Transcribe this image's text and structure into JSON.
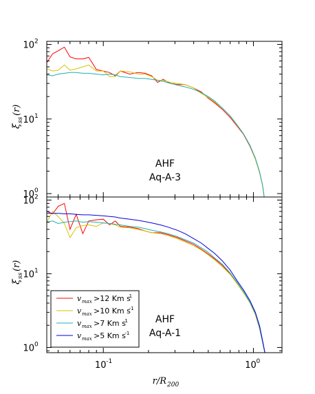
{
  "chart_data": [
    {
      "type": "line",
      "xscale": "log",
      "yscale": "log",
      "xlim": [
        0.042,
        1.55
      ],
      "ylim": [
        0.9,
        110
      ],
      "ylabel_main": "ξ",
      "ylabel_sub": "ss",
      "ylabel_tail": "(r)",
      "annotation": [
        "AHF",
        "Aq-A-3"
      ],
      "yticks": [
        {
          "value": 1,
          "label_base": "10",
          "label_exp": "0"
        },
        {
          "value": 10,
          "label_base": "10",
          "label_exp": "1"
        },
        {
          "value": 100,
          "label_base": "10",
          "label_exp": "2"
        }
      ],
      "series": [
        {
          "color": "#ff0000",
          "points": [
            [
              0.042,
              57
            ],
            [
              0.046,
              75
            ],
            [
              0.05,
              82
            ],
            [
              0.055,
              92
            ],
            [
              0.06,
              68
            ],
            [
              0.066,
              64
            ],
            [
              0.073,
              64
            ],
            [
              0.08,
              67
            ],
            [
              0.09,
              46
            ],
            [
              0.1,
              44
            ],
            [
              0.11,
              42
            ],
            [
              0.12,
              38
            ],
            [
              0.13,
              44
            ],
            [
              0.15,
              40
            ],
            [
              0.17,
              42
            ],
            [
              0.19,
              41
            ],
            [
              0.21,
              38
            ],
            [
              0.23,
              31
            ],
            [
              0.25,
              34
            ],
            [
              0.28,
              30
            ],
            [
              0.31,
              29
            ],
            [
              0.35,
              29
            ],
            [
              0.4,
              26
            ],
            [
              0.45,
              23
            ],
            [
              0.5,
              19
            ],
            [
              0.55,
              16.5
            ],
            [
              0.62,
              13.5
            ],
            [
              0.7,
              10.5
            ],
            [
              0.78,
              8
            ],
            [
              0.86,
              6.2
            ],
            [
              0.95,
              4.3
            ],
            [
              1.03,
              2.9
            ],
            [
              1.1,
              1.9
            ],
            [
              1.15,
              1.3
            ],
            [
              1.18,
              0.9
            ]
          ]
        },
        {
          "color": "#d6c200",
          "points": [
            [
              0.042,
              47
            ],
            [
              0.046,
              44
            ],
            [
              0.05,
              45
            ],
            [
              0.055,
              53
            ],
            [
              0.06,
              45
            ],
            [
              0.066,
              47
            ],
            [
              0.073,
              50
            ],
            [
              0.08,
              53
            ],
            [
              0.09,
              44
            ],
            [
              0.1,
              44
            ],
            [
              0.11,
              37
            ],
            [
              0.12,
              37
            ],
            [
              0.13,
              44
            ],
            [
              0.15,
              43
            ],
            [
              0.17,
              40
            ],
            [
              0.19,
              40
            ],
            [
              0.21,
              37
            ],
            [
              0.23,
              33
            ],
            [
              0.25,
              33
            ],
            [
              0.28,
              31
            ],
            [
              0.31,
              30
            ],
            [
              0.35,
              29
            ],
            [
              0.4,
              26
            ],
            [
              0.45,
              22
            ],
            [
              0.5,
              19.5
            ],
            [
              0.55,
              17
            ],
            [
              0.62,
              14
            ],
            [
              0.7,
              11
            ],
            [
              0.78,
              8.2
            ],
            [
              0.86,
              6.3
            ],
            [
              0.95,
              4.4
            ],
            [
              1.03,
              2.9
            ],
            [
              1.1,
              1.9
            ],
            [
              1.15,
              1.3
            ],
            [
              1.18,
              0.9
            ]
          ]
        },
        {
          "color": "#20b0b0",
          "points": [
            [
              0.042,
              39
            ],
            [
              0.046,
              38
            ],
            [
              0.05,
              40
            ],
            [
              0.055,
              41
            ],
            [
              0.06,
              42
            ],
            [
              0.066,
              42
            ],
            [
              0.073,
              41
            ],
            [
              0.08,
              41
            ],
            [
              0.09,
              40
            ],
            [
              0.1,
              39
            ],
            [
              0.11,
              40
            ],
            [
              0.12,
              39
            ],
            [
              0.13,
              37
            ],
            [
              0.15,
              36
            ],
            [
              0.17,
              35
            ],
            [
              0.19,
              35
            ],
            [
              0.21,
              34
            ],
            [
              0.23,
              33
            ],
            [
              0.25,
              32
            ],
            [
              0.28,
              30
            ],
            [
              0.31,
              28.5
            ],
            [
              0.35,
              27
            ],
            [
              0.4,
              25
            ],
            [
              0.45,
              22.5
            ],
            [
              0.5,
              20
            ],
            [
              0.55,
              17.5
            ],
            [
              0.62,
              14
            ],
            [
              0.7,
              11
            ],
            [
              0.78,
              8.3
            ],
            [
              0.86,
              6.3
            ],
            [
              0.95,
              4.4
            ],
            [
              1.03,
              3
            ],
            [
              1.1,
              1.95
            ],
            [
              1.15,
              1.3
            ],
            [
              1.18,
              0.9
            ]
          ]
        }
      ]
    },
    {
      "type": "line",
      "xscale": "log",
      "yscale": "log",
      "xlim": [
        0.042,
        1.55
      ],
      "ylim": [
        0.85,
        110
      ],
      "ylabel_main": "ξ",
      "ylabel_sub": "ss",
      "ylabel_tail": "(r)",
      "xlabel_main": "r/R",
      "xlabel_sub": "200",
      "annotation": [
        "AHF",
        "Aq-A-1"
      ],
      "yticks": [
        {
          "value": 1,
          "label_base": "10",
          "label_exp": "0"
        },
        {
          "value": 10,
          "label_base": "10",
          "label_exp": "1"
        },
        {
          "value": 100,
          "label_base": "10",
          "label_exp": "2"
        }
      ],
      "xticks": [
        {
          "value": 0.1,
          "label_base": "10",
          "label_exp": "-1"
        },
        {
          "value": 1,
          "label_base": "10",
          "label_exp": "0"
        }
      ],
      "legend": {
        "position": "lower-left",
        "entries": [
          {
            "color": "#ff0000",
            "v": "v",
            "sub": "max",
            "text": ">12 Km s",
            "exp": "1"
          },
          {
            "color": "#d6c200",
            "v": "v",
            "sub": "max",
            "text": ">10 Km s",
            "exp": "-1"
          },
          {
            "color": "#20b0b0",
            "v": "v",
            "sub": "max",
            "text": ">7 Km s",
            "exp": "1"
          },
          {
            "color": "#0000dd",
            "v": "v",
            "sub": "max",
            "text": ">5 Km s",
            "exp": "-1"
          }
        ]
      },
      "series": [
        {
          "color": "#ff0000",
          "points": [
            [
              0.042,
              70
            ],
            [
              0.046,
              65
            ],
            [
              0.05,
              82
            ],
            [
              0.055,
              90
            ],
            [
              0.06,
              40
            ],
            [
              0.066,
              64
            ],
            [
              0.073,
              35
            ],
            [
              0.08,
              52
            ],
            [
              0.09,
              54
            ],
            [
              0.1,
              55
            ],
            [
              0.11,
              46
            ],
            [
              0.12,
              52
            ],
            [
              0.13,
              44
            ],
            [
              0.15,
              43
            ],
            [
              0.17,
              41
            ],
            [
              0.19,
              38
            ],
            [
              0.21,
              36
            ],
            [
              0.24,
              36
            ],
            [
              0.27,
              34
            ],
            [
              0.31,
              31
            ],
            [
              0.35,
              28
            ],
            [
              0.4,
              25
            ],
            [
              0.45,
              21.5
            ],
            [
              0.5,
              18.5
            ],
            [
              0.55,
              16
            ],
            [
              0.62,
              13
            ],
            [
              0.7,
              10
            ],
            [
              0.78,
              7.4
            ],
            [
              0.86,
              5.6
            ],
            [
              0.95,
              4.0
            ],
            [
              1.03,
              2.8
            ],
            [
              1.1,
              1.8
            ],
            [
              1.16,
              1.1
            ],
            [
              1.2,
              0.8
            ]
          ]
        },
        {
          "color": "#d6c200",
          "points": [
            [
              0.042,
              50
            ],
            [
              0.046,
              70
            ],
            [
              0.05,
              60
            ],
            [
              0.055,
              48
            ],
            [
              0.06,
              31
            ],
            [
              0.066,
              42
            ],
            [
              0.073,
              45
            ],
            [
              0.08,
              46
            ],
            [
              0.09,
              44
            ],
            [
              0.1,
              49
            ],
            [
              0.11,
              48
            ],
            [
              0.12,
              46
            ],
            [
              0.13,
              43
            ],
            [
              0.15,
              42
            ],
            [
              0.17,
              40
            ],
            [
              0.19,
              38
            ],
            [
              0.21,
              36
            ],
            [
              0.24,
              35
            ],
            [
              0.27,
              33
            ],
            [
              0.31,
              30
            ],
            [
              0.35,
              27
            ],
            [
              0.4,
              24
            ],
            [
              0.45,
              21
            ],
            [
              0.5,
              18
            ],
            [
              0.55,
              15.5
            ],
            [
              0.62,
              12.5
            ],
            [
              0.7,
              9.8
            ],
            [
              0.78,
              7.3
            ],
            [
              0.86,
              5.5
            ],
            [
              0.95,
              4.0
            ],
            [
              1.03,
              2.8
            ],
            [
              1.1,
              1.8
            ],
            [
              1.16,
              1.1
            ],
            [
              1.2,
              0.8
            ]
          ]
        },
        {
          "color": "#20b0b0",
          "points": [
            [
              0.042,
              50
            ],
            [
              0.046,
              52
            ],
            [
              0.05,
              48
            ],
            [
              0.055,
              50
            ],
            [
              0.06,
              51
            ],
            [
              0.066,
              52
            ],
            [
              0.073,
              50
            ],
            [
              0.08,
              51
            ],
            [
              0.09,
              50
            ],
            [
              0.1,
              49
            ],
            [
              0.11,
              48
            ],
            [
              0.12,
              47
            ],
            [
              0.13,
              46
            ],
            [
              0.15,
              44
            ],
            [
              0.17,
              43
            ],
            [
              0.19,
              41
            ],
            [
              0.21,
              39
            ],
            [
              0.24,
              37
            ],
            [
              0.27,
              35
            ],
            [
              0.31,
              32
            ],
            [
              0.35,
              29
            ],
            [
              0.4,
              26
            ],
            [
              0.45,
              22.5
            ],
            [
              0.5,
              19.5
            ],
            [
              0.55,
              16.5
            ],
            [
              0.62,
              13.5
            ],
            [
              0.7,
              10.2
            ],
            [
              0.78,
              7.6
            ],
            [
              0.86,
              5.7
            ],
            [
              0.95,
              4.1
            ],
            [
              1.03,
              2.9
            ],
            [
              1.1,
              1.85
            ],
            [
              1.16,
              1.1
            ],
            [
              1.2,
              0.8
            ]
          ]
        },
        {
          "color": "#0000dd",
          "points": [
            [
              0.042,
              66
            ],
            [
              0.046,
              66
            ],
            [
              0.05,
              66
            ],
            [
              0.055,
              65
            ],
            [
              0.06,
              65
            ],
            [
              0.066,
              64
            ],
            [
              0.073,
              63
            ],
            [
              0.08,
              63
            ],
            [
              0.09,
              62
            ],
            [
              0.1,
              61
            ],
            [
              0.11,
              60
            ],
            [
              0.12,
              59
            ],
            [
              0.13,
              57
            ],
            [
              0.15,
              55
            ],
            [
              0.17,
              53
            ],
            [
              0.19,
              51
            ],
            [
              0.21,
              49
            ],
            [
              0.24,
              46
            ],
            [
              0.27,
              43
            ],
            [
              0.31,
              39
            ],
            [
              0.35,
              35
            ],
            [
              0.4,
              30
            ],
            [
              0.45,
              26
            ],
            [
              0.5,
              22
            ],
            [
              0.55,
              19
            ],
            [
              0.62,
              15
            ],
            [
              0.7,
              11.2
            ],
            [
              0.78,
              8
            ],
            [
              0.86,
              6
            ],
            [
              0.95,
              4.3
            ],
            [
              1.03,
              3
            ],
            [
              1.1,
              1.95
            ],
            [
              1.16,
              1.15
            ],
            [
              1.2,
              0.8
            ]
          ]
        }
      ]
    }
  ]
}
